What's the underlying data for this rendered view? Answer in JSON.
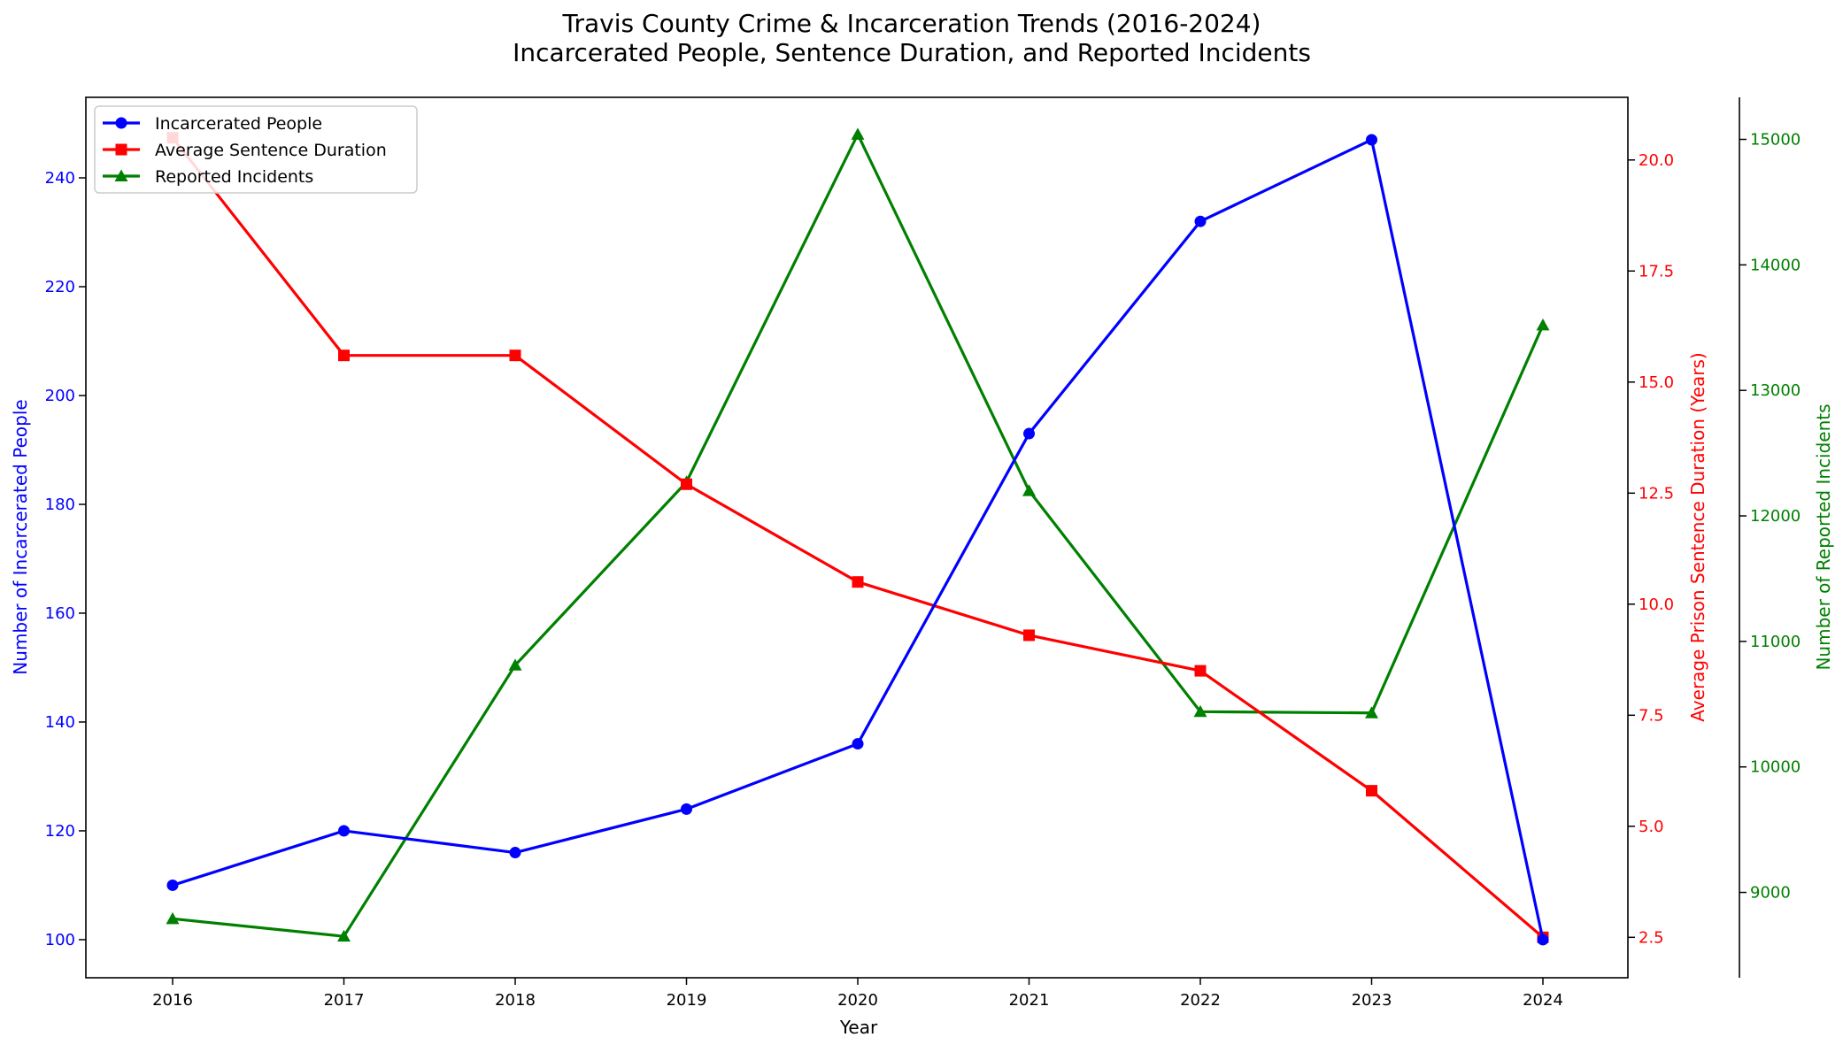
{
  "chart_data": {
    "type": "line",
    "title": "Travis County Crime & Incarceration Trends (2016-2024)",
    "subtitle": "Incarcerated People, Sentence Duration, and Reported Incidents",
    "xlabel": "Year",
    "x": [
      "2016",
      "2017",
      "2018",
      "2019",
      "2020",
      "2021",
      "2022",
      "2023",
      "2024"
    ],
    "grid": false,
    "legend_position": "top-left",
    "axes": {
      "left": {
        "label": "Number of Incarcerated People",
        "color": "#0000ff",
        "ylim": [
          93,
          254.8
        ],
        "ticks": [
          "100",
          "120",
          "140",
          "160",
          "180",
          "200",
          "220",
          "240"
        ],
        "tick_values": [
          100,
          120,
          140,
          160,
          180,
          200,
          220,
          240
        ]
      },
      "right": {
        "label": "Average Prison Sentence Duration (Years)",
        "color": "#ff0000",
        "ylim": [
          1.59,
          21.41
        ],
        "ticks": [
          "2.5",
          "5.0",
          "7.5",
          "10.0",
          "12.5",
          "15.0",
          "17.5",
          "20.0"
        ],
        "tick_values": [
          2.5,
          5.0,
          7.5,
          10.0,
          12.5,
          15.0,
          17.5,
          20.0
        ]
      },
      "far_right": {
        "label": "Number of Reported Incidents",
        "color": "#008000",
        "ylim": [
          8320,
          15335
        ],
        "ticks": [
          "9000",
          "10000",
          "11000",
          "12000",
          "13000",
          "14000",
          "15000"
        ],
        "tick_values": [
          9000,
          10000,
          11000,
          12000,
          13000,
          14000,
          15000
        ]
      }
    },
    "series": [
      {
        "name": "Incarcerated People",
        "axis": "left",
        "color": "#0000ff",
        "marker": "circle",
        "values": [
          110,
          120,
          116,
          124,
          136,
          193,
          232,
          247,
          100
        ]
      },
      {
        "name": "Average Sentence Duration",
        "axis": "right",
        "color": "#ff0000",
        "marker": "square",
        "values": [
          20.5,
          15.6,
          15.6,
          12.7,
          10.5,
          9.3,
          8.5,
          5.8,
          2.5
        ]
      },
      {
        "name": "Reported Incidents",
        "axis": "far_right",
        "color": "#008000",
        "marker": "triangle",
        "values": [
          8790,
          8650,
          10810,
          12270,
          15040,
          12200,
          10440,
          10430,
          13520
        ]
      }
    ]
  }
}
